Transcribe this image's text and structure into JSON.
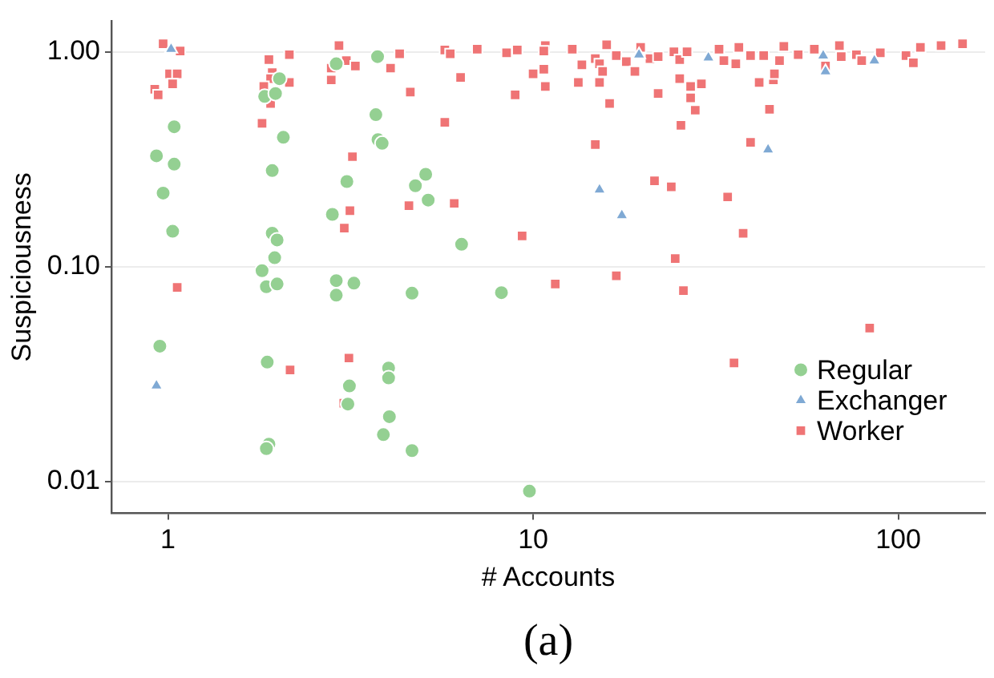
{
  "chart_data": {
    "type": "scatter",
    "xlabel": "# Accounts",
    "ylabel": "Suspiciousness",
    "log": "xy",
    "xlim": [
      0.72,
      173
    ],
    "ylim": [
      0.0071,
      1.39
    ],
    "xticks": [
      1,
      10,
      100
    ],
    "yticks": [
      {
        "value": 1,
        "label": "1.00"
      },
      {
        "value": 0.1,
        "label": "0.10"
      },
      {
        "value": 0.01,
        "label": "0.01"
      }
    ],
    "grid": "y",
    "legend": "bottom right",
    "annotations": [
      "(a)"
    ],
    "series": [
      {
        "name": "Regular",
        "color": "#94d092",
        "marker": "circle",
        "x": [
          1.04,
          0.93,
          1.04,
          0.97,
          1.03,
          0.95,
          1.84,
          1.97,
          2.02,
          2.07,
          1.93,
          1.93,
          1.99,
          1.96,
          1.81,
          1.86,
          1.99,
          1.87,
          1.89,
          1.86,
          2.89,
          3.09,
          2.82,
          2.89,
          3.23,
          2.89,
          3.14,
          3.11,
          3.75,
          3.71,
          3.76,
          3.86,
          4.66,
          4.02,
          4.02,
          4.04,
          3.89,
          4.66,
          4.76,
          5.08,
          5.16,
          6.37,
          8.19,
          9.77
        ],
        "values": [
          0.448,
          0.328,
          0.3,
          0.22,
          0.146,
          0.0426,
          0.62,
          0.64,
          0.75,
          0.4,
          0.28,
          0.143,
          0.133,
          0.11,
          0.0957,
          0.0806,
          0.083,
          0.0359,
          0.0149,
          0.0142,
          0.88,
          0.249,
          0.175,
          0.086,
          0.0837,
          0.0736,
          0.0278,
          0.0229,
          0.95,
          0.51,
          0.39,
          0.375,
          0.0752,
          0.0337,
          0.0303,
          0.02,
          0.0165,
          0.0139,
          0.238,
          0.269,
          0.204,
          0.127,
          0.0756,
          0.009
        ]
      },
      {
        "name": "Exchanger",
        "color": "#7fa9d4",
        "marker": "triangle",
        "x": [
          1.02,
          0.93,
          15.2,
          17.5,
          19.5,
          30.2,
          44,
          62.3,
          63.2,
          86
        ],
        "values": [
          1.03,
          0.0279,
          0.228,
          0.173,
          0.97,
          0.94,
          0.35,
          0.96,
          0.81,
          0.91
        ]
      },
      {
        "name": "Worker",
        "color": "#ef7475",
        "marker": "square",
        "x": [
          0.97,
          1.08,
          1.01,
          1.06,
          1.03,
          0.92,
          0.94,
          1.06,
          1.89,
          2.15,
          1.93,
          1.91,
          1.83,
          2.15,
          1.91,
          1.81,
          2.16,
          2.94,
          3.08,
          3.26,
          2.8,
          2.8,
          3.2,
          3.15,
          3.04,
          3.13,
          3.03,
          4.31,
          4.07,
          4.61,
          4.57,
          5.73,
          5.93,
          7.03,
          8.46,
          9.05,
          10.8,
          10.7,
          12.8,
          10.7,
          10,
          10.8,
          6.33,
          8.93,
          5.73,
          6.08,
          9.33,
          11.5,
          13.6,
          13.3,
          14.8,
          15.2,
          15.9,
          15.5,
          15.2,
          16.2,
          14.8,
          16.9,
          18,
          19,
          19.7,
          20.9,
          22,
          24.3,
          25.2,
          26.4,
          25.2,
          22,
          27,
          27,
          27.8,
          25.4,
          21.5,
          23.9,
          24.5,
          16.9,
          25.8,
          28.9,
          32.3,
          33.3,
          35.9,
          36.6,
          39.4,
          42.8,
          47.3,
          48.6,
          53.2,
          58.9,
          69,
          69.8,
          76.8,
          79.4,
          89.3,
          105,
          110,
          115,
          131,
          150,
          41.6,
          45.5,
          44.4,
          39.4,
          34.1,
          37.6,
          83.5,
          35.5,
          63.2,
          45.8
        ],
        "values": [
          1.09,
          1.01,
          0.79,
          0.79,
          0.71,
          0.67,
          0.63,
          0.08,
          0.92,
          0.97,
          0.8,
          0.75,
          0.69,
          0.72,
          0.575,
          0.465,
          0.033,
          1.07,
          0.91,
          0.86,
          0.84,
          0.74,
          0.325,
          0.182,
          0.151,
          0.0375,
          0.0231,
          0.98,
          0.84,
          0.65,
          0.192,
          1.02,
          0.98,
          1.03,
          0.99,
          1.02,
          1.07,
          1.01,
          1.03,
          0.83,
          0.79,
          0.69,
          0.76,
          0.63,
          0.47,
          0.197,
          0.139,
          0.083,
          0.87,
          0.72,
          0.93,
          0.88,
          1.08,
          0.81,
          0.72,
          0.575,
          0.37,
          0.96,
          0.9,
          0.81,
          1.05,
          0.93,
          0.95,
          1,
          0.92,
          1,
          0.75,
          0.64,
          0.69,
          0.61,
          0.535,
          0.455,
          0.251,
          0.235,
          0.109,
          0.0906,
          0.0773,
          0.71,
          1.03,
          0.91,
          0.88,
          1.05,
          0.96,
          0.96,
          0.91,
          1.06,
          0.97,
          1.03,
          1.07,
          0.95,
          0.97,
          0.91,
          0.99,
          0.96,
          0.89,
          1.05,
          1.07,
          1.09,
          0.72,
          0.74,
          0.54,
          0.379,
          0.211,
          0.143,
          0.0517,
          0.0356,
          0.86,
          0.79
        ]
      }
    ]
  }
}
